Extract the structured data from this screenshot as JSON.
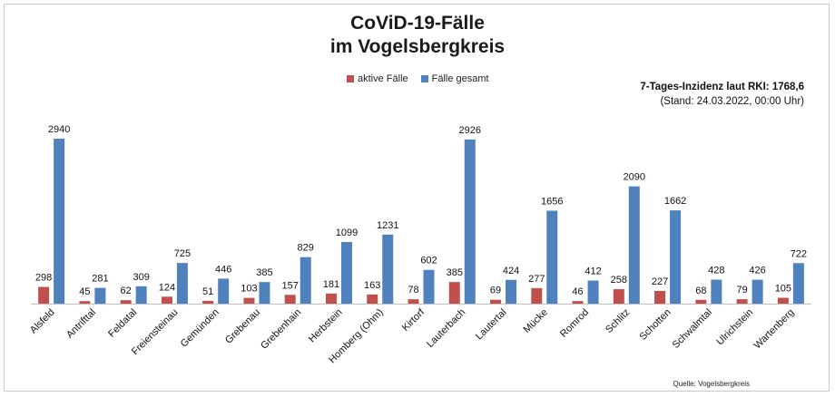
{
  "title": "CoViD-19-Fälle",
  "subtitle": "im Vogelsbergkreis",
  "incidence_label": "7-Tages-Inzidenz laut RKI: 1768,6",
  "incidence_stand": "(Stand: 24.03.2022, 00:00 Uhr)",
  "source": "Quelle: Vogelsbergkreis",
  "colors": {
    "active": "#c0504d",
    "total": "#4f81bd"
  },
  "chart_data": {
    "type": "bar",
    "title": "CoViD-19-Fälle im Vogelsbergkreis",
    "xlabel": "",
    "ylabel": "",
    "ylim": [
      0,
      3000
    ],
    "grid": false,
    "legend_position": "top",
    "categories": [
      "Alsfeld",
      "Antrifttal",
      "Feldatal",
      "Freiensteinau",
      "Gemünden",
      "Grebenau",
      "Grebenhain",
      "Herbstein",
      "Homberg (Ohm)",
      "Kirtorf",
      "Lauterbach",
      "Lautertal",
      "Mücke",
      "Romrod",
      "Schlitz",
      "Schotten",
      "Schwalmtal",
      "Ulrichstein",
      "Wartenberg"
    ],
    "series": [
      {
        "name": "aktive Fälle",
        "values": [
          298,
          45,
          62,
          124,
          51,
          103,
          157,
          181,
          163,
          78,
          385,
          69,
          277,
          46,
          258,
          227,
          68,
          79,
          105
        ]
      },
      {
        "name": "Fälle gesamt",
        "values": [
          2940,
          281,
          309,
          725,
          446,
          385,
          829,
          1099,
          1231,
          602,
          2926,
          424,
          1656,
          412,
          2090,
          1662,
          428,
          426,
          722
        ]
      }
    ]
  }
}
